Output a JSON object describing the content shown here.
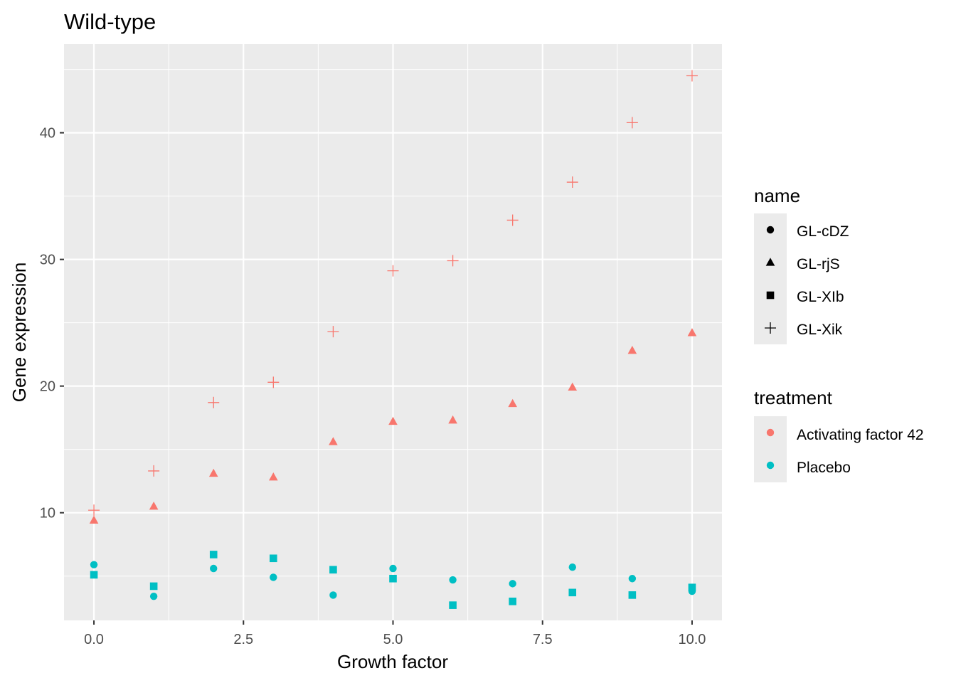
{
  "chart_data": {
    "type": "scatter",
    "title": "Wild-type",
    "xlabel": "Growth factor",
    "ylabel": "Gene expression",
    "xlim": [
      -0.5,
      10.5
    ],
    "ylim": [
      1.5,
      47
    ],
    "x_ticks": [
      0,
      2.5,
      5,
      7.5,
      10
    ],
    "x_tick_labels": [
      "0.0",
      "2.5",
      "5.0",
      "7.5",
      "10.0"
    ],
    "y_ticks": [
      10,
      20,
      30,
      40
    ],
    "y_tick_labels": [
      "10",
      "20",
      "30",
      "40"
    ],
    "grid": true,
    "legend_position": "right",
    "shape_legend": {
      "title": "name",
      "items": [
        {
          "label": "GL-cDZ",
          "shape": "circle"
        },
        {
          "label": "GL-rjS",
          "shape": "triangle"
        },
        {
          "label": "GL-XIb",
          "shape": "square"
        },
        {
          "label": "GL-Xik",
          "shape": "plus"
        }
      ]
    },
    "color_legend": {
      "title": "treatment",
      "items": [
        {
          "label": "Activating factor 42",
          "color": "#F8766D"
        },
        {
          "label": "Placebo",
          "color": "#00BFC4"
        }
      ]
    },
    "series": [
      {
        "name": "GL-cDZ",
        "shape": "circle",
        "treatment": "Placebo",
        "x": [
          0,
          1,
          2,
          3,
          4,
          5,
          6,
          7,
          8,
          9,
          10
        ],
        "y": [
          5.9,
          3.4,
          5.6,
          4.9,
          3.5,
          5.6,
          4.7,
          4.4,
          5.7,
          4.8,
          3.8
        ]
      },
      {
        "name": "GL-rjS",
        "shape": "triangle",
        "treatment": "Activating factor 42",
        "x": [
          0,
          1,
          2,
          3,
          4,
          5,
          6,
          7,
          8,
          9,
          10
        ],
        "y": [
          9.4,
          10.5,
          13.1,
          12.8,
          15.6,
          17.2,
          17.3,
          18.6,
          19.9,
          22.8,
          24.2
        ]
      },
      {
        "name": "GL-XIb",
        "shape": "square",
        "treatment": "Placebo",
        "x": [
          0,
          1,
          2,
          3,
          4,
          5,
          6,
          7,
          8,
          9,
          10
        ],
        "y": [
          5.1,
          4.2,
          6.7,
          6.4,
          5.5,
          4.8,
          2.7,
          3.0,
          3.7,
          3.5,
          4.1
        ]
      },
      {
        "name": "GL-Xik",
        "shape": "plus",
        "treatment": "Activating factor 42",
        "x": [
          0,
          1,
          2,
          3,
          4,
          5,
          6,
          7,
          8,
          9,
          10
        ],
        "y": [
          10.2,
          13.3,
          18.7,
          20.3,
          24.3,
          29.1,
          29.9,
          33.1,
          36.1,
          40.8,
          44.5
        ]
      }
    ]
  }
}
